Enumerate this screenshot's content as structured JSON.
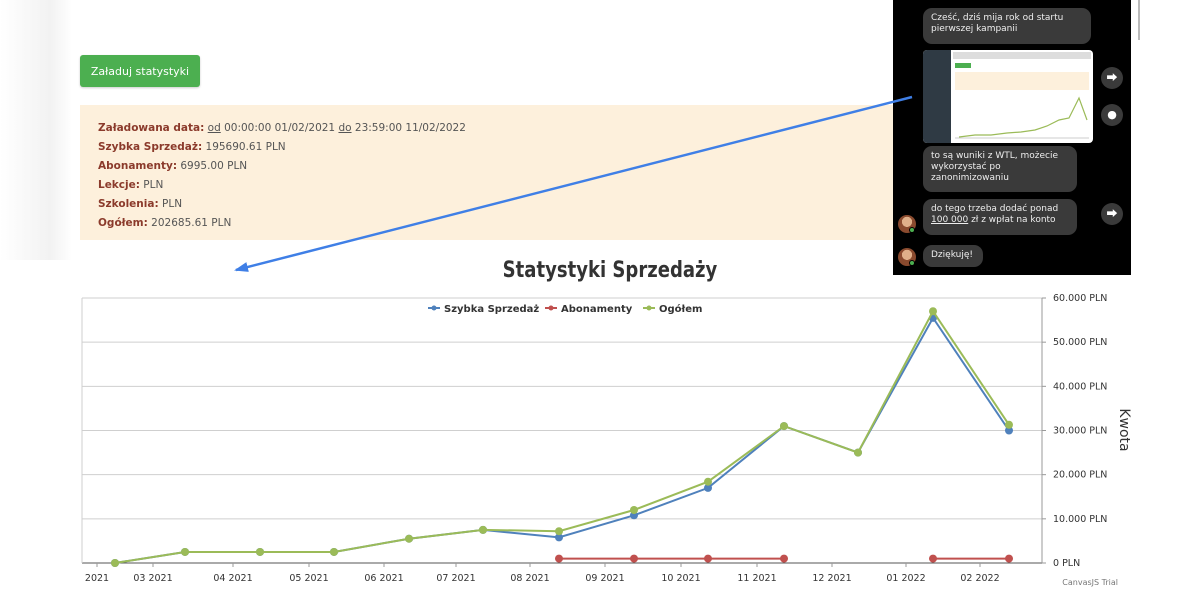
{
  "toolbar": {
    "load_label": "Załaduj statystyki"
  },
  "stats": {
    "loaded_label": "Załadowana data:",
    "od": "od",
    "start": " 00:00:00 01/02/2021 ",
    "do": "do",
    "end": " 23:59:00 11/02/2022",
    "szybka_label": "Szybka Sprzedaż:",
    "szybka_value": " 195690.61 PLN",
    "abon_label": "Abonamenty:",
    "abon_value": " 6995.00 PLN",
    "lekcje_label": "Lekcje:",
    "lekcje_value": " PLN",
    "szkol_label": "Szkolenia:",
    "szkol_value": " PLN",
    "ogolem_label": "Ogółem:",
    "ogolem_value": " 202685.61 PLN"
  },
  "chat": {
    "msg1": "Cześć, dziś mija rok od startu pierwszej kampanii",
    "msg2": "to są wuniki z WTL, możecie wykorzystać po zanonimizowaniu",
    "msg3_pre": "do tego trzeba dodać ponad ",
    "msg3_link": "100 000",
    "msg3_post": " zł z wpłat na konto",
    "msg4": "Dziękuję!"
  },
  "chart_data": {
    "type": "line",
    "title": "Statystyki Sprzedaży",
    "ylabel": "Kwota",
    "ylim": [
      0,
      60000
    ],
    "y_ticks": [
      "0 PLN",
      "10.000 PLN",
      "20.000 PLN",
      "30.000 PLN",
      "40.000 PLN",
      "50.000 PLN",
      "60.000 PLN"
    ],
    "x_tick_labels": [
      "2021",
      "03 2021",
      "04 2021",
      "05 2021",
      "06 2021",
      "07 2021",
      "08 2021",
      "09 2021",
      "10 2021",
      "11 2021",
      "12 2021",
      "01 2022",
      "02 2022"
    ],
    "x": [
      "2021-02",
      "2021-03",
      "2021-04",
      "2021-05",
      "2021-06",
      "2021-07",
      "2021-08",
      "2021-09",
      "2021-10",
      "2021-11",
      "2021-12",
      "2022-01",
      "2022-02"
    ],
    "legend": "top-center",
    "grid": true,
    "watermark": "CanvasJS Trial",
    "series": [
      {
        "name": "Szybka Sprzedaż",
        "color": "#4f81bc",
        "values": [
          0,
          2500,
          2500,
          2500,
          5500,
          7500,
          5800,
          10800,
          17000,
          31000,
          25000,
          55500,
          30000
        ]
      },
      {
        "name": "Abonamenty",
        "color": "#c0504e",
        "values": [
          null,
          null,
          null,
          null,
          null,
          null,
          1000,
          1000,
          1000,
          1000,
          null,
          1000,
          1000
        ]
      },
      {
        "name": "Ogółem",
        "color": "#9bbb58",
        "values": [
          0,
          2500,
          2500,
          2500,
          5500,
          7500,
          7200,
          12000,
          18400,
          31000,
          25000,
          57000,
          31300
        ]
      }
    ]
  }
}
